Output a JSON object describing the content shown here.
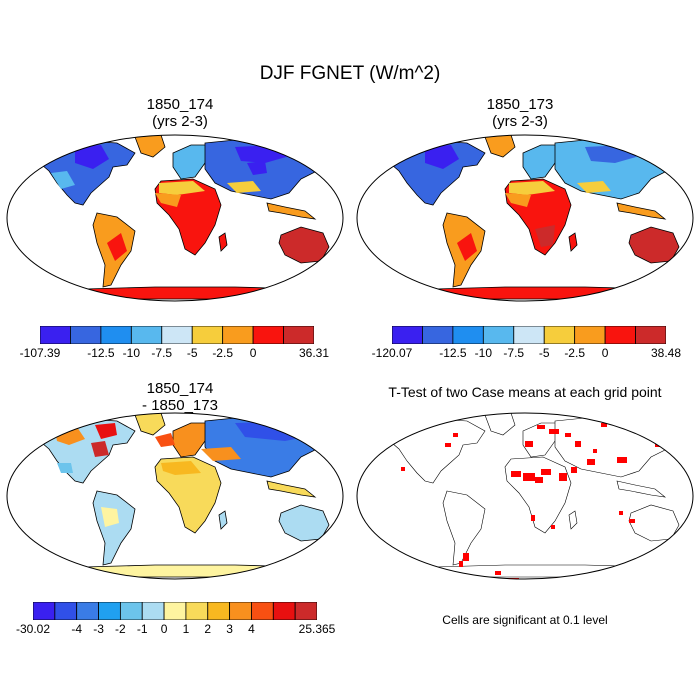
{
  "title": "DJF FGNET (W/m^2)",
  "panels": [
    {
      "id": "p1",
      "title_line1": "1850_174",
      "title_line2": "(yrs 2-3)",
      "colorbar": {
        "colors": [
          "#3a20f0",
          "#3766e0",
          "#1f8ef0",
          "#58b8ee",
          "#cde6f6",
          "#f6cd3c",
          "#f99c1e",
          "#f9140e",
          "#cc2a2a"
        ],
        "labels": [
          "-107.39",
          "-12.5",
          "-10",
          "-7.5",
          "-5",
          "-2.5",
          "0",
          "36.31"
        ]
      }
    },
    {
      "id": "p2",
      "title_line1": "1850_173",
      "title_line2": "(yrs 2-3)",
      "colorbar": {
        "colors": [
          "#3a20f0",
          "#3766e0",
          "#1f8ef0",
          "#58b8ee",
          "#cde6f6",
          "#f6cd3c",
          "#f99c1e",
          "#f9140e",
          "#cc2a2a"
        ],
        "labels": [
          "-120.07",
          "-12.5",
          "-10",
          "-7.5",
          "-5",
          "-2.5",
          "0",
          "38.48"
        ]
      }
    },
    {
      "id": "p3",
      "title_line1": "1850_174",
      "title_line2": "- 1850_173",
      "colorbar": {
        "colors": [
          "#3a20f0",
          "#3050e8",
          "#3a7ce6",
          "#20a0f0",
          "#6cc4ec",
          "#acdcf2",
          "#fef4a0",
          "#f8da5a",
          "#f8b820",
          "#f8901e",
          "#f85012",
          "#e81010",
          "#cc2a2a"
        ],
        "labels": [
          "-30.02",
          "-4",
          "-3",
          "-2",
          "-1",
          "0",
          "1",
          "2",
          "3",
          "4",
          "25.365"
        ]
      }
    },
    {
      "id": "p4",
      "title_line1": "T-Test of two Case means at each grid point",
      "note": "Cells are significant at 0.1 level",
      "significance_color": "#ff0000"
    }
  ]
}
